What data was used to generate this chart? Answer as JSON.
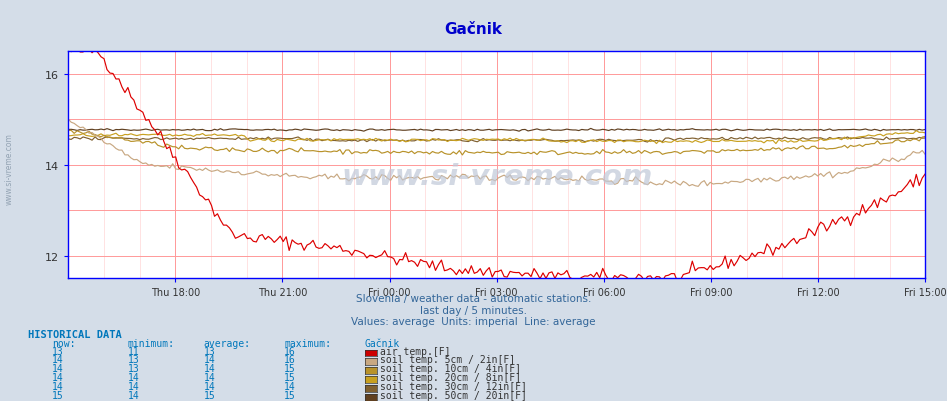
{
  "title": "Gačnik",
  "title_color": "#0000cc",
  "bg_color": "#d4dde8",
  "plot_bg_color": "#ffffff",
  "watermark": "www.si-vreme.com",
  "subtitle1": "Slovenia / weather data - automatic stations.",
  "subtitle2": "last day / 5 minutes.",
  "subtitle3": "Values: average  Units: imperial  Line: average",
  "xlabel_times": [
    "Thu 18:00",
    "Thu 21:00",
    "Fri 00:00",
    "Fri 03:00",
    "Fri 06:00",
    "Fri 09:00",
    "Fri 12:00",
    "Fri 15:00"
  ],
  "ylim": [
    11.5,
    16.5
  ],
  "yticks": [
    12,
    14,
    16
  ],
  "series_keys": [
    "air_temp",
    "soil_5cm",
    "soil_10cm",
    "soil_20cm",
    "soil_30cm",
    "soil_50cm"
  ],
  "series": {
    "air_temp": {
      "color": "#dd0000",
      "icon_color": "#cc0000",
      "label": "air temp.[F]",
      "now": 13,
      "min": 11,
      "avg": 13,
      "max": 16
    },
    "soil_5cm": {
      "color": "#c8a882",
      "icon_color": "#c8a882",
      "label": "soil temp. 5cm / 2in[F]",
      "now": 14,
      "min": 13,
      "avg": 14,
      "max": 16
    },
    "soil_10cm": {
      "color": "#b8922a",
      "icon_color": "#b8922a",
      "label": "soil temp. 10cm / 4in[F]",
      "now": 14,
      "min": 13,
      "avg": 14,
      "max": 15
    },
    "soil_20cm": {
      "color": "#c8a020",
      "icon_color": "#c8a020",
      "label": "soil temp. 20cm / 8in[F]",
      "now": 14,
      "min": 14,
      "avg": 14,
      "max": 15
    },
    "soil_30cm": {
      "color": "#806030",
      "icon_color": "#806030",
      "label": "soil temp. 30cm / 12in[F]",
      "now": 14,
      "min": 14,
      "avg": 14,
      "max": 14
    },
    "soil_50cm": {
      "color": "#604020",
      "icon_color": "#604020",
      "label": "soil temp. 50cm / 20in[F]",
      "now": 15,
      "min": 14,
      "avg": 15,
      "max": 15
    }
  },
  "historical_header": "HISTORICAL DATA",
  "table_headers": [
    "now:",
    "minimum:",
    "average:",
    "maximum:",
    "Gačnik"
  ]
}
